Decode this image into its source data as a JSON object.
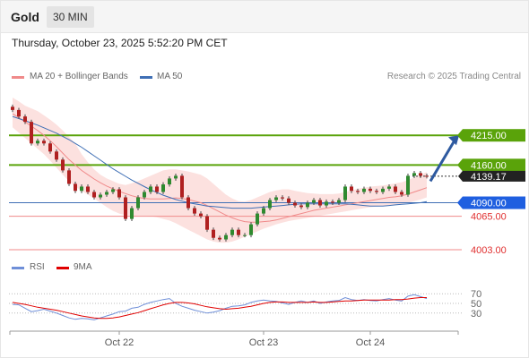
{
  "header": {
    "title": "Gold",
    "timeframe": "30 MIN"
  },
  "datetime": "Thursday, October 23, 2025 5:52:20 PM CET",
  "legend": {
    "ma20": {
      "label": "MA 20 + Bollinger Bands",
      "color": "#f08a8a"
    },
    "ma50": {
      "label": "MA 50",
      "color": "#3f6fb5"
    }
  },
  "credit": "Research © 2025 Trading Central",
  "rsi_legend": {
    "rsi": {
      "label": "RSI",
      "color": "#6f8fd8"
    },
    "ma9": {
      "label": "9MA",
      "color": "#e00000"
    }
  },
  "chart_data": [
    {
      "type": "candlestick",
      "ylim": [
        3988,
        4300
      ],
      "x_labels": [
        {
          "label": "Oct 22",
          "index": 17
        },
        {
          "label": "Oct 23",
          "index": 40
        },
        {
          "label": "Oct 24",
          "index": 57
        }
      ],
      "levels": [
        {
          "label": "4215.00",
          "value": 4215,
          "kind": "resistance"
        },
        {
          "label": "4160.00",
          "value": 4160,
          "kind": "resistance"
        },
        {
          "label": "4090.00",
          "value": 4090,
          "kind": "pivot"
        },
        {
          "label": "4065.00",
          "value": 4065,
          "kind": "support"
        },
        {
          "label": "4003.00",
          "value": 4003,
          "kind": "support"
        }
      ],
      "current_price": {
        "label": "4139.17",
        "value": 4139.17
      },
      "close": [
        4262,
        4250,
        4240,
        4200,
        4205,
        4200,
        4185,
        4170,
        4150,
        4125,
        4112,
        4120,
        4110,
        4100,
        4105,
        4110,
        4115,
        4100,
        4060,
        4080,
        4100,
        4110,
        4120,
        4110,
        4124,
        4135,
        4140,
        4100,
        4080,
        4070,
        4065,
        4040,
        4025,
        4022,
        4030,
        4040,
        4030,
        4030,
        4050,
        4070,
        4080,
        4095,
        4100,
        4098,
        4090,
        4085,
        4082,
        4090,
        4095,
        4085,
        4092,
        4090,
        4095,
        4120,
        4112,
        4110,
        4116,
        4112,
        4110,
        4116,
        4120,
        4110,
        4105,
        4140,
        4145,
        4140,
        4139.17
      ],
      "ma20": [
        4255,
        4248,
        4240,
        4232,
        4224,
        4215,
        4205,
        4194,
        4182,
        4170,
        4160,
        4150,
        4142,
        4134,
        4127,
        4121,
        4116,
        4111,
        4107,
        4103,
        4100,
        4098,
        4097,
        4097,
        4097,
        4098,
        4099,
        4098,
        4096,
        4093,
        4090,
        4085,
        4079,
        4073,
        4067,
        4062,
        4058,
        4055,
        4054,
        4054,
        4055,
        4056,
        4058,
        4061,
        4064,
        4067,
        4070,
        4073,
        4076,
        4078,
        4080,
        4082,
        4084,
        4086,
        4088,
        4090,
        4092,
        4094,
        4096,
        4098,
        4100,
        4101,
        4103,
        4106,
        4110,
        4114,
        4118
      ],
      "bollinger_upper": [
        4285,
        4278,
        4270,
        4265,
        4260,
        4252,
        4244,
        4235,
        4224,
        4212,
        4200,
        4180,
        4165,
        4152,
        4142,
        4135,
        4130,
        4125,
        4123,
        4126,
        4130,
        4135,
        4140,
        4145,
        4150,
        4152,
        4152,
        4150,
        4148,
        4145,
        4142,
        4135,
        4125,
        4115,
        4105,
        4098,
        4093,
        4092,
        4095,
        4100,
        4105,
        4110,
        4113,
        4115,
        4115,
        4112,
        4110,
        4108,
        4107,
        4106,
        4106,
        4106,
        4107,
        4110,
        4113,
        4116,
        4118,
        4120,
        4121,
        4122,
        4124,
        4126,
        4128,
        4132,
        4137,
        4142,
        4147
      ],
      "bollinger_lower": [
        4230,
        4220,
        4210,
        4200,
        4190,
        4180,
        4168,
        4155,
        4142,
        4130,
        4120,
        4112,
        4105,
        4098,
        4090,
        4082,
        4075,
        4070,
        4067,
        4066,
        4066,
        4066,
        4065,
        4063,
        4060,
        4057,
        4052,
        4046,
        4040,
        4034,
        4028,
        4022,
        4018,
        4016,
        4016,
        4018,
        4022,
        4027,
        4032,
        4037,
        4042,
        4046,
        4050,
        4053,
        4056,
        4058,
        4060,
        4062,
        4064,
        4066,
        4068,
        4070,
        4072,
        4074,
        4076,
        4078,
        4080,
        4082,
        4083,
        4084,
        4085,
        4086,
        4088,
        4090,
        4093,
        4096,
        4100
      ],
      "ma50": [
        4250,
        4246,
        4242,
        4238,
        4234,
        4229,
        4224,
        4219,
        4213,
        4207,
        4200,
        4193,
        4185,
        4177,
        4169,
        4161,
        4153,
        4146,
        4139,
        4132,
        4126,
        4120,
        4114,
        4109,
        4104,
        4100,
        4096,
        4093,
        4090,
        4088,
        4086,
        4084,
        4083,
        4082,
        4081,
        4080,
        4080,
        4080,
        4080,
        4081,
        4082,
        4083,
        4084,
        4085,
        4086,
        4087,
        4088,
        4088,
        4088,
        4088,
        4088,
        4088,
        4088,
        4088,
        4087,
        4086,
        4085,
        4084,
        4084,
        4084,
        4085,
        4086,
        4087,
        4088,
        4089,
        4090,
        4092
      ],
      "projection": {
        "from": 4130,
        "to": 4215
      }
    },
    {
      "type": "line",
      "title": "RSI",
      "ylim": [
        0,
        100
      ],
      "y_ticks": [
        70,
        50,
        30
      ],
      "series": [
        {
          "name": "RSI",
          "values": [
            48,
            47,
            40,
            33,
            35,
            38,
            34,
            30,
            25,
            20,
            17,
            19,
            18,
            16,
            20,
            24,
            28,
            33,
            34,
            40,
            42,
            48,
            52,
            55,
            58,
            60,
            50,
            44,
            40,
            36,
            33,
            30,
            32,
            35,
            40,
            44,
            45,
            47,
            52,
            55,
            57,
            55,
            54,
            51,
            48,
            52,
            55,
            52,
            55,
            50,
            53,
            55,
            56,
            62,
            58,
            56,
            58,
            56,
            55,
            58,
            60,
            57,
            55,
            65,
            68,
            64,
            60
          ]
        },
        {
          "name": "9MA",
          "values": [
            52,
            50,
            48,
            45,
            42,
            40,
            38,
            36,
            33,
            30,
            27,
            24,
            22,
            20,
            19,
            19,
            20,
            22,
            25,
            28,
            31,
            35,
            39,
            43,
            47,
            50,
            52,
            52,
            51,
            49,
            46,
            43,
            41,
            39,
            38,
            39,
            40,
            42,
            44,
            47,
            50,
            52,
            53,
            53,
            52,
            52,
            52,
            52,
            53,
            52,
            52,
            53,
            54,
            55,
            55,
            56,
            57,
            57,
            57,
            57,
            57,
            58,
            58,
            59,
            61,
            62,
            62
          ]
        }
      ]
    }
  ]
}
